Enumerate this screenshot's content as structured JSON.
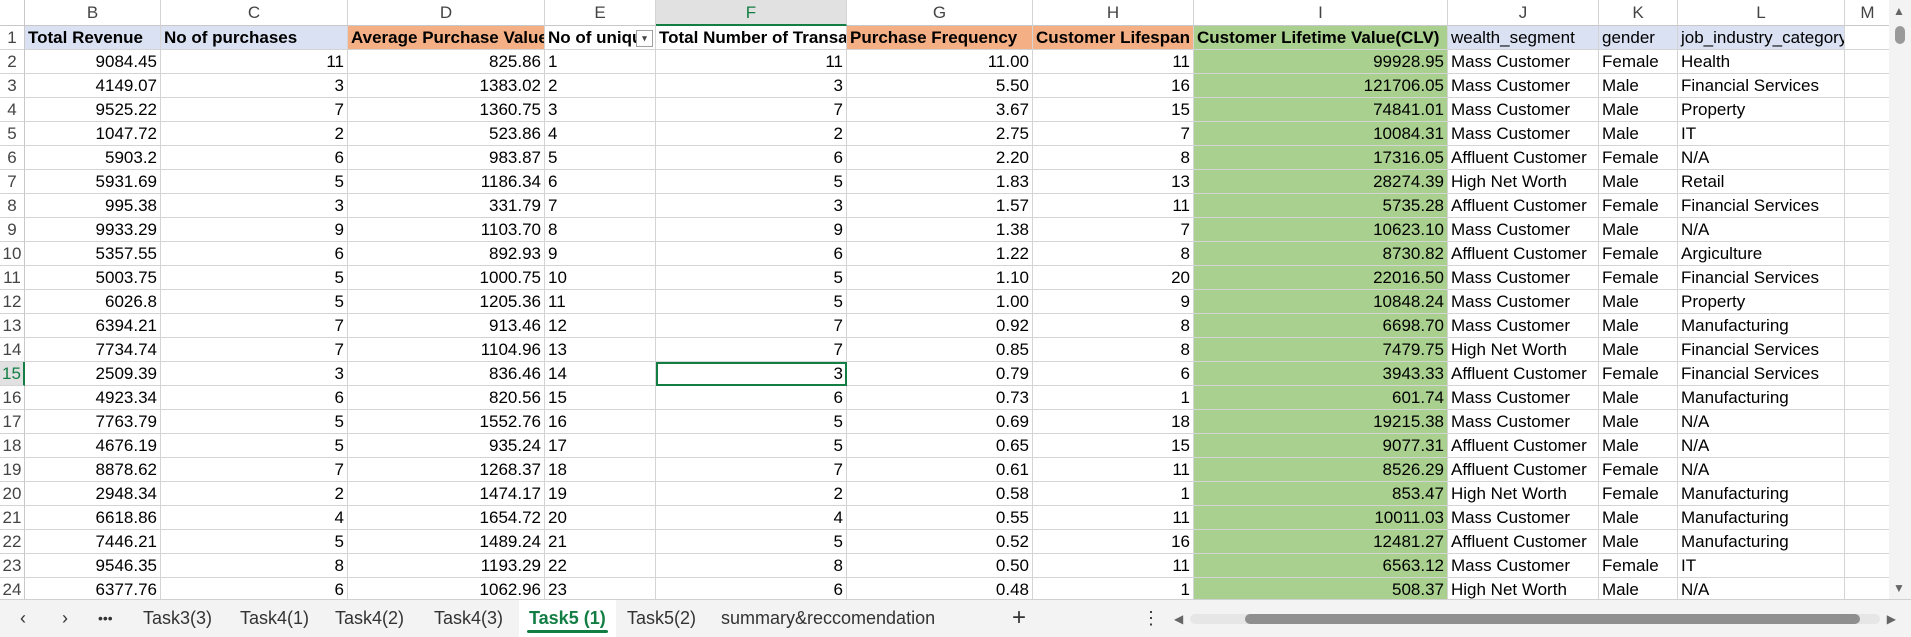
{
  "columns": [
    "B",
    "C",
    "D",
    "E",
    "F",
    "G",
    "H",
    "I",
    "J",
    "K",
    "L",
    "M"
  ],
  "active_column": "F",
  "headers": [
    "Total Revenue",
    "No of purchases",
    "Average Purchase Value",
    "No of uniqu",
    "Total Number of Transac",
    "Purchase Frequency",
    "Customer Lifespan",
    "Customer Lifetime Value(CLV)",
    "wealth_segment",
    "gender",
    "job_industry_category",
    ""
  ],
  "rows": [
    {
      "n": "2",
      "v": [
        "9084.45",
        "11",
        "825.86",
        "1",
        "11",
        "11.00",
        "11",
        "99928.95",
        "Mass Customer",
        "Female",
        "Health"
      ]
    },
    {
      "n": "3",
      "v": [
        "4149.07",
        "3",
        "1383.02",
        "2",
        "3",
        "5.50",
        "16",
        "121706.05",
        "Mass Customer",
        "Male",
        "Financial Services"
      ]
    },
    {
      "n": "4",
      "v": [
        "9525.22",
        "7",
        "1360.75",
        "3",
        "7",
        "3.67",
        "15",
        "74841.01",
        "Mass Customer",
        "Male",
        "Property"
      ]
    },
    {
      "n": "5",
      "v": [
        "1047.72",
        "2",
        "523.86",
        "4",
        "2",
        "2.75",
        "7",
        "10084.31",
        "Mass Customer",
        "Male",
        "IT"
      ]
    },
    {
      "n": "6",
      "v": [
        "5903.2",
        "6",
        "983.87",
        "5",
        "6",
        "2.20",
        "8",
        "17316.05",
        "Affluent Customer",
        "Female",
        "N/A"
      ]
    },
    {
      "n": "7",
      "v": [
        "5931.69",
        "5",
        "1186.34",
        "6",
        "5",
        "1.83",
        "13",
        "28274.39",
        "High Net Worth",
        "Male",
        "Retail"
      ]
    },
    {
      "n": "8",
      "v": [
        "995.38",
        "3",
        "331.79",
        "7",
        "3",
        "1.57",
        "11",
        "5735.28",
        "Affluent Customer",
        "Female",
        "Financial Services"
      ]
    },
    {
      "n": "9",
      "v": [
        "9933.29",
        "9",
        "1103.70",
        "8",
        "9",
        "1.38",
        "7",
        "10623.10",
        "Mass Customer",
        "Male",
        "N/A"
      ]
    },
    {
      "n": "10",
      "v": [
        "5357.55",
        "6",
        "892.93",
        "9",
        "6",
        "1.22",
        "8",
        "8730.82",
        "Affluent Customer",
        "Female",
        "Argiculture"
      ]
    },
    {
      "n": "11",
      "v": [
        "5003.75",
        "5",
        "1000.75",
        "10",
        "5",
        "1.10",
        "20",
        "22016.50",
        "Mass Customer",
        "Female",
        "Financial Services"
      ]
    },
    {
      "n": "12",
      "v": [
        "6026.8",
        "5",
        "1205.36",
        "11",
        "5",
        "1.00",
        "9",
        "10848.24",
        "Mass Customer",
        "Male",
        "Property"
      ]
    },
    {
      "n": "13",
      "v": [
        "6394.21",
        "7",
        "913.46",
        "12",
        "7",
        "0.92",
        "8",
        "6698.70",
        "Mass Customer",
        "Male",
        "Manufacturing"
      ]
    },
    {
      "n": "14",
      "v": [
        "7734.74",
        "7",
        "1104.96",
        "13",
        "7",
        "0.85",
        "8",
        "7479.75",
        "High Net Worth",
        "Male",
        "Financial Services"
      ]
    },
    {
      "n": "15",
      "v": [
        "2509.39",
        "3",
        "836.46",
        "14",
        "3",
        "0.79",
        "6",
        "3943.33",
        "Affluent Customer",
        "Female",
        "Financial Services"
      ]
    },
    {
      "n": "16",
      "v": [
        "4923.34",
        "6",
        "820.56",
        "15",
        "6",
        "0.73",
        "1",
        "601.74",
        "Mass Customer",
        "Male",
        "Manufacturing"
      ]
    },
    {
      "n": "17",
      "v": [
        "7763.79",
        "5",
        "1552.76",
        "16",
        "5",
        "0.69",
        "18",
        "19215.38",
        "Mass Customer",
        "Male",
        "N/A"
      ]
    },
    {
      "n": "18",
      "v": [
        "4676.19",
        "5",
        "935.24",
        "17",
        "5",
        "0.65",
        "15",
        "9077.31",
        "Affluent Customer",
        "Male",
        "N/A"
      ]
    },
    {
      "n": "19",
      "v": [
        "8878.62",
        "7",
        "1268.37",
        "18",
        "7",
        "0.61",
        "11",
        "8526.29",
        "Affluent Customer",
        "Female",
        "N/A"
      ]
    },
    {
      "n": "20",
      "v": [
        "2948.34",
        "2",
        "1474.17",
        "19",
        "2",
        "0.58",
        "1",
        "853.47",
        "High Net Worth",
        "Female",
        "Manufacturing"
      ]
    },
    {
      "n": "21",
      "v": [
        "6618.86",
        "4",
        "1654.72",
        "20",
        "4",
        "0.55",
        "11",
        "10011.03",
        "Mass Customer",
        "Male",
        "Manufacturing"
      ]
    },
    {
      "n": "22",
      "v": [
        "7446.21",
        "5",
        "1489.24",
        "21",
        "5",
        "0.52",
        "16",
        "12481.27",
        "Affluent Customer",
        "Male",
        "Manufacturing"
      ]
    },
    {
      "n": "23",
      "v": [
        "9546.35",
        "8",
        "1193.29",
        "22",
        "8",
        "0.50",
        "11",
        "6563.12",
        "Mass Customer",
        "Female",
        "IT"
      ]
    },
    {
      "n": "24",
      "v": [
        "6377.76",
        "6",
        "1062.96",
        "23",
        "6",
        "0.48",
        "1",
        "508.37",
        "High Net Worth",
        "Male",
        "N/A"
      ]
    }
  ],
  "selected_row": "15",
  "header_fills": {
    "blue": "#d9e1f2",
    "orange": "#f4b084",
    "green": "#a9d08e",
    "white": "#ffffff"
  },
  "sheet_tabs": [
    "Task3(3)",
    "Task4(1)",
    "Task4(2)",
    "Task4(3)",
    "Task5 (1)",
    "Task5(2)",
    "summary&reccomendation"
  ],
  "active_tab": "Task5 (1)",
  "tabbar": {
    "prev": "‹",
    "next": "›",
    "more": "•••",
    "add": "+",
    "options": "⋮"
  },
  "accent_color": "#137e43",
  "icons": {
    "filter": "filter-dropdown-icon",
    "scroll_up": "scroll-up-arrow-icon",
    "scroll_down": "scroll-down-arrow-icon"
  }
}
